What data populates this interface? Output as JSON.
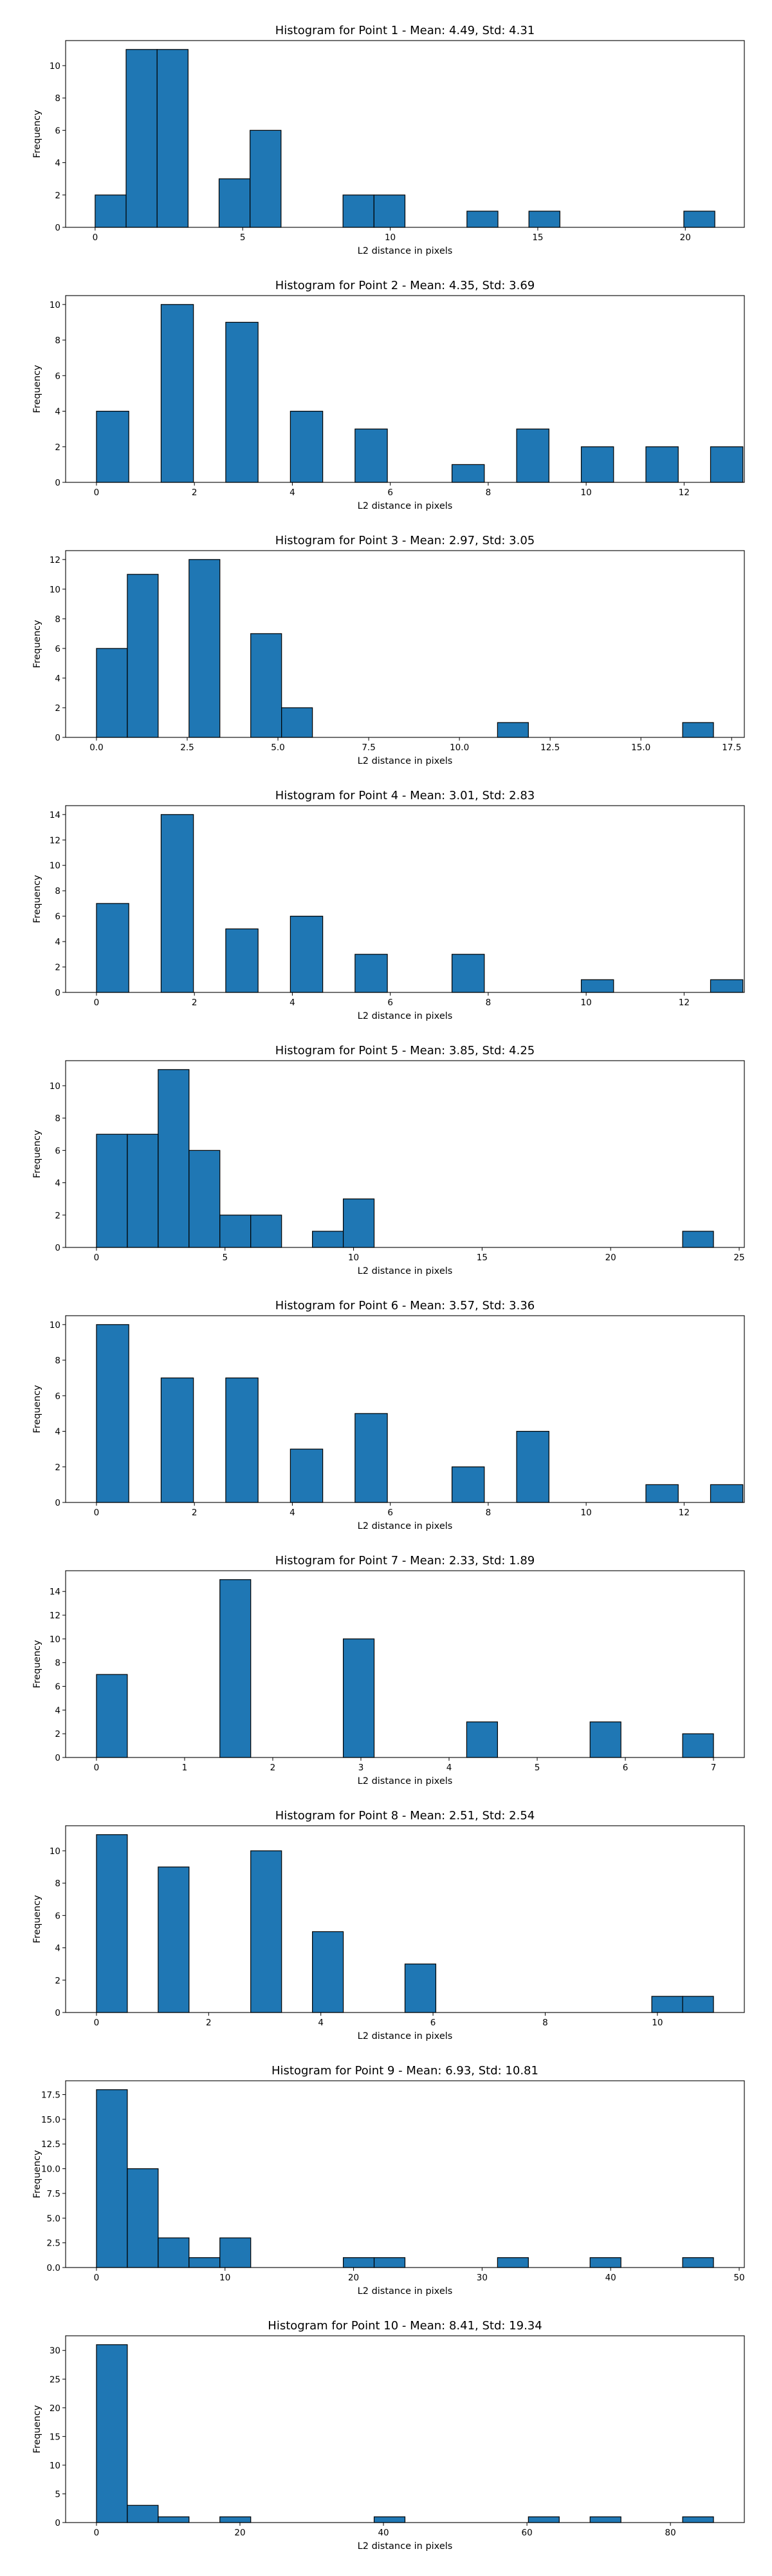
{
  "chart_data": [
    {
      "type": "bar",
      "title": "Histogram for Point 1 - Mean: 4.49, Std: 4.31",
      "xlabel": "L2 distance in pixels",
      "ylabel": "Frequency",
      "xlim": [
        -1.0,
        22.0
      ],
      "ylim": [
        0,
        11.55
      ],
      "xticks": [
        {
          "v": 0,
          "t": "0"
        },
        {
          "v": 5,
          "t": "5"
        },
        {
          "v": 10,
          "t": "10"
        },
        {
          "v": 15,
          "t": "15"
        },
        {
          "v": 20,
          "t": "20"
        }
      ],
      "yticks": [
        {
          "v": 0,
          "t": "0"
        },
        {
          "v": 2,
          "t": "2"
        },
        {
          "v": 4,
          "t": "4"
        },
        {
          "v": 6,
          "t": "6"
        },
        {
          "v": 8,
          "t": "8"
        },
        {
          "v": 10,
          "t": "10"
        }
      ],
      "bins": [
        [
          0.0,
          1.05,
          2
        ],
        [
          1.05,
          2.1,
          11
        ],
        [
          2.1,
          3.15,
          11
        ],
        [
          4.2,
          5.25,
          3
        ],
        [
          5.25,
          6.3,
          6
        ],
        [
          8.4,
          9.45,
          2
        ],
        [
          9.45,
          10.5,
          2
        ],
        [
          12.6,
          13.65,
          1
        ],
        [
          14.7,
          15.75,
          1
        ],
        [
          19.95,
          21.0,
          1
        ]
      ],
      "grid": false
    },
    {
      "type": "bar",
      "title": "Histogram for Point 2 - Mean: 4.35, Std: 3.69",
      "xlabel": "L2 distance in pixels",
      "ylabel": "Frequency",
      "xlim": [
        -0.63,
        13.23
      ],
      "ylim": [
        0,
        10.5
      ],
      "xticks": [
        {
          "v": 0,
          "t": "0"
        },
        {
          "v": 2,
          "t": "2"
        },
        {
          "v": 4,
          "t": "4"
        },
        {
          "v": 6,
          "t": "6"
        },
        {
          "v": 8,
          "t": "8"
        },
        {
          "v": 10,
          "t": "10"
        },
        {
          "v": 12,
          "t": "12"
        }
      ],
      "yticks": [
        {
          "v": 0,
          "t": "0"
        },
        {
          "v": 2,
          "t": "2"
        },
        {
          "v": 4,
          "t": "4"
        },
        {
          "v": 6,
          "t": "6"
        },
        {
          "v": 8,
          "t": "8"
        },
        {
          "v": 10,
          "t": "10"
        }
      ],
      "bins": [
        [
          0.0,
          0.66,
          4
        ],
        [
          1.32,
          1.98,
          10
        ],
        [
          2.64,
          3.3,
          9
        ],
        [
          3.96,
          4.62,
          4
        ],
        [
          5.28,
          5.94,
          3
        ],
        [
          7.26,
          7.92,
          1
        ],
        [
          8.58,
          9.24,
          3
        ],
        [
          9.9,
          10.56,
          2
        ],
        [
          11.22,
          11.88,
          2
        ],
        [
          12.54,
          13.2,
          2
        ]
      ],
      "grid": false
    },
    {
      "type": "bar",
      "title": "Histogram for Point 3 - Mean: 2.97, Std: 3.05",
      "xlabel": "L2 distance in pixels",
      "ylabel": "Frequency",
      "xlim": [
        -0.85,
        17.85
      ],
      "ylim": [
        0,
        12.6
      ],
      "xticks": [
        {
          "v": 0,
          "t": "0.0"
        },
        {
          "v": 2.5,
          "t": "2.5"
        },
        {
          "v": 5,
          "t": "5.0"
        },
        {
          "v": 7.5,
          "t": "7.5"
        },
        {
          "v": 10,
          "t": "10.0"
        },
        {
          "v": 12.5,
          "t": "12.5"
        },
        {
          "v": 15,
          "t": "15.0"
        },
        {
          "v": 17.5,
          "t": "17.5"
        }
      ],
      "yticks": [
        {
          "v": 0,
          "t": "0"
        },
        {
          "v": 2,
          "t": "2"
        },
        {
          "v": 4,
          "t": "4"
        },
        {
          "v": 6,
          "t": "6"
        },
        {
          "v": 8,
          "t": "8"
        },
        {
          "v": 10,
          "t": "10"
        },
        {
          "v": 12,
          "t": "12"
        }
      ],
      "bins": [
        [
          0.0,
          0.85,
          6
        ],
        [
          0.85,
          1.7,
          11
        ],
        [
          2.55,
          3.4,
          12
        ],
        [
          4.25,
          5.1,
          7
        ],
        [
          5.1,
          5.95,
          2
        ],
        [
          11.05,
          11.9,
          1
        ],
        [
          16.15,
          17.0,
          1
        ]
      ],
      "grid": false
    },
    {
      "type": "bar",
      "title": "Histogram for Point 4 - Mean: 3.01, Std: 2.83",
      "xlabel": "L2 distance in pixels",
      "ylabel": "Frequency",
      "xlim": [
        -0.63,
        13.23
      ],
      "ylim": [
        0,
        14.7
      ],
      "xticks": [
        {
          "v": 0,
          "t": "0"
        },
        {
          "v": 2,
          "t": "2"
        },
        {
          "v": 4,
          "t": "4"
        },
        {
          "v": 6,
          "t": "6"
        },
        {
          "v": 8,
          "t": "8"
        },
        {
          "v": 10,
          "t": "10"
        },
        {
          "v": 12,
          "t": "12"
        }
      ],
      "yticks": [
        {
          "v": 0,
          "t": "0"
        },
        {
          "v": 2,
          "t": "2"
        },
        {
          "v": 4,
          "t": "4"
        },
        {
          "v": 6,
          "t": "6"
        },
        {
          "v": 8,
          "t": "8"
        },
        {
          "v": 10,
          "t": "10"
        },
        {
          "v": 12,
          "t": "12"
        },
        {
          "v": 14,
          "t": "14"
        }
      ],
      "bins": [
        [
          0.0,
          0.66,
          7
        ],
        [
          1.32,
          1.98,
          14
        ],
        [
          2.64,
          3.3,
          5
        ],
        [
          3.96,
          4.62,
          6
        ],
        [
          5.28,
          5.94,
          3
        ],
        [
          7.26,
          7.92,
          3
        ],
        [
          9.9,
          10.56,
          1
        ],
        [
          12.54,
          13.2,
          1
        ]
      ],
      "grid": false
    },
    {
      "type": "bar",
      "title": "Histogram for Point 5 - Mean: 3.85, Std: 4.25",
      "xlabel": "L2 distance in pixels",
      "ylabel": "Frequency",
      "xlim": [
        -1.2,
        25.2
      ],
      "ylim": [
        0,
        11.55
      ],
      "xticks": [
        {
          "v": 0,
          "t": "0"
        },
        {
          "v": 5,
          "t": "5"
        },
        {
          "v": 10,
          "t": "10"
        },
        {
          "v": 15,
          "t": "15"
        },
        {
          "v": 20,
          "t": "20"
        },
        {
          "v": 25,
          "t": "25"
        }
      ],
      "yticks": [
        {
          "v": 0,
          "t": "0"
        },
        {
          "v": 2,
          "t": "2"
        },
        {
          "v": 4,
          "t": "4"
        },
        {
          "v": 6,
          "t": "6"
        },
        {
          "v": 8,
          "t": "8"
        },
        {
          "v": 10,
          "t": "10"
        }
      ],
      "bins": [
        [
          0.0,
          1.2,
          7
        ],
        [
          1.2,
          2.4,
          7
        ],
        [
          2.4,
          3.6,
          11
        ],
        [
          3.6,
          4.8,
          6
        ],
        [
          4.8,
          6.0,
          2
        ],
        [
          6.0,
          7.2,
          2
        ],
        [
          8.4,
          9.6,
          1
        ],
        [
          9.6,
          10.8,
          3
        ],
        [
          22.8,
          24.0,
          1
        ]
      ],
      "grid": false
    },
    {
      "type": "bar",
      "title": "Histogram for Point 6 - Mean: 3.57, Std: 3.36",
      "xlabel": "L2 distance in pixels",
      "ylabel": "Frequency",
      "xlim": [
        -0.63,
        13.23
      ],
      "ylim": [
        0,
        10.5
      ],
      "xticks": [
        {
          "v": 0,
          "t": "0"
        },
        {
          "v": 2,
          "t": "2"
        },
        {
          "v": 4,
          "t": "4"
        },
        {
          "v": 6,
          "t": "6"
        },
        {
          "v": 8,
          "t": "8"
        },
        {
          "v": 10,
          "t": "10"
        },
        {
          "v": 12,
          "t": "12"
        }
      ],
      "yticks": [
        {
          "v": 0,
          "t": "0"
        },
        {
          "v": 2,
          "t": "2"
        },
        {
          "v": 4,
          "t": "4"
        },
        {
          "v": 6,
          "t": "6"
        },
        {
          "v": 8,
          "t": "8"
        },
        {
          "v": 10,
          "t": "10"
        }
      ],
      "bins": [
        [
          0.0,
          0.66,
          10
        ],
        [
          1.32,
          1.98,
          7
        ],
        [
          2.64,
          3.3,
          7
        ],
        [
          3.96,
          4.62,
          3
        ],
        [
          5.28,
          5.94,
          5
        ],
        [
          7.26,
          7.92,
          2
        ],
        [
          8.58,
          9.24,
          4
        ],
        [
          11.22,
          11.88,
          1
        ],
        [
          12.54,
          13.2,
          1
        ]
      ],
      "grid": false
    },
    {
      "type": "bar",
      "title": "Histogram for Point 7 - Mean: 2.33, Std: 1.89",
      "xlabel": "L2 distance in pixels",
      "ylabel": "Frequency",
      "xlim": [
        -0.35,
        7.35
      ],
      "ylim": [
        0,
        15.75
      ],
      "xticks": [
        {
          "v": 0,
          "t": "0"
        },
        {
          "v": 1,
          "t": "1"
        },
        {
          "v": 2,
          "t": "2"
        },
        {
          "v": 3,
          "t": "3"
        },
        {
          "v": 4,
          "t": "4"
        },
        {
          "v": 5,
          "t": "5"
        },
        {
          "v": 6,
          "t": "6"
        },
        {
          "v": 7,
          "t": "7"
        }
      ],
      "yticks": [
        {
          "v": 0,
          "t": "0"
        },
        {
          "v": 2,
          "t": "2"
        },
        {
          "v": 4,
          "t": "4"
        },
        {
          "v": 6,
          "t": "6"
        },
        {
          "v": 8,
          "t": "8"
        },
        {
          "v": 10,
          "t": "10"
        },
        {
          "v": 12,
          "t": "12"
        },
        {
          "v": 14,
          "t": "14"
        }
      ],
      "bins": [
        [
          0.0,
          0.35,
          7
        ],
        [
          1.4,
          1.75,
          15
        ],
        [
          2.8,
          3.15,
          10
        ],
        [
          4.2,
          4.55,
          3
        ],
        [
          5.6,
          5.95,
          3
        ],
        [
          6.65,
          7.0,
          2
        ]
      ],
      "grid": false
    },
    {
      "type": "bar",
      "title": "Histogram for Point 8 - Mean: 2.51, Std: 2.54",
      "xlabel": "L2 distance in pixels",
      "ylabel": "Frequency",
      "xlim": [
        -0.55,
        11.55
      ],
      "ylim": [
        0,
        11.55
      ],
      "xticks": [
        {
          "v": 0,
          "t": "0"
        },
        {
          "v": 2,
          "t": "2"
        },
        {
          "v": 4,
          "t": "4"
        },
        {
          "v": 6,
          "t": "6"
        },
        {
          "v": 8,
          "t": "8"
        },
        {
          "v": 10,
          "t": "10"
        }
      ],
      "yticks": [
        {
          "v": 0,
          "t": "0"
        },
        {
          "v": 2,
          "t": "2"
        },
        {
          "v": 4,
          "t": "4"
        },
        {
          "v": 6,
          "t": "6"
        },
        {
          "v": 8,
          "t": "8"
        },
        {
          "v": 10,
          "t": "10"
        }
      ],
      "bins": [
        [
          0.0,
          0.55,
          11
        ],
        [
          1.1,
          1.65,
          9
        ],
        [
          2.75,
          3.3,
          10
        ],
        [
          3.85,
          4.4,
          5
        ],
        [
          5.5,
          6.05,
          3
        ],
        [
          9.9,
          10.45,
          1
        ],
        [
          10.45,
          11.0,
          1
        ]
      ],
      "grid": false
    },
    {
      "type": "bar",
      "title": "Histogram for Point 9 - Mean: 6.93, Std: 10.81",
      "xlabel": "L2 distance in pixels",
      "ylabel": "Frequency",
      "xlim": [
        -2.4,
        50.4
      ],
      "ylim": [
        0,
        18.9
      ],
      "xticks": [
        {
          "v": 0,
          "t": "0"
        },
        {
          "v": 10,
          "t": "10"
        },
        {
          "v": 20,
          "t": "20"
        },
        {
          "v": 30,
          "t": "30"
        },
        {
          "v": 40,
          "t": "40"
        },
        {
          "v": 50,
          "t": "50"
        }
      ],
      "yticks": [
        {
          "v": 0,
          "t": "0.0"
        },
        {
          "v": 2.5,
          "t": "2.5"
        },
        {
          "v": 5,
          "t": "5.0"
        },
        {
          "v": 7.5,
          "t": "7.5"
        },
        {
          "v": 10,
          "t": "10.0"
        },
        {
          "v": 12.5,
          "t": "12.5"
        },
        {
          "v": 15,
          "t": "15.0"
        },
        {
          "v": 17.5,
          "t": "17.5"
        }
      ],
      "bins": [
        [
          0.0,
          2.4,
          18
        ],
        [
          2.4,
          4.8,
          10
        ],
        [
          4.8,
          7.2,
          3
        ],
        [
          7.2,
          9.6,
          1
        ],
        [
          9.6,
          12.0,
          3
        ],
        [
          19.2,
          21.6,
          1
        ],
        [
          21.6,
          24.0,
          1
        ],
        [
          31.2,
          33.6,
          1
        ],
        [
          38.4,
          40.8,
          1
        ],
        [
          45.6,
          48.0,
          1
        ]
      ],
      "grid": false
    },
    {
      "type": "bar",
      "title": "Histogram for Point 10 - Mean: 8.41, Std: 19.34",
      "xlabel": "L2 distance in pixels",
      "ylabel": "Frequency",
      "xlim": [
        -4.3,
        90.3
      ],
      "ylim": [
        0,
        32.55
      ],
      "xticks": [
        {
          "v": 0,
          "t": "0"
        },
        {
          "v": 20,
          "t": "20"
        },
        {
          "v": 40,
          "t": "40"
        },
        {
          "v": 60,
          "t": "60"
        },
        {
          "v": 80,
          "t": "80"
        }
      ],
      "yticks": [
        {
          "v": 0,
          "t": "0"
        },
        {
          "v": 5,
          "t": "5"
        },
        {
          "v": 10,
          "t": "10"
        },
        {
          "v": 15,
          "t": "15"
        },
        {
          "v": 20,
          "t": "20"
        },
        {
          "v": 25,
          "t": "25"
        },
        {
          "v": 30,
          "t": "30"
        }
      ],
      "bins": [
        [
          0.0,
          4.3,
          31
        ],
        [
          4.3,
          8.6,
          3
        ],
        [
          8.6,
          12.9,
          1
        ],
        [
          17.2,
          21.5,
          1
        ],
        [
          38.7,
          43.0,
          1
        ],
        [
          60.2,
          64.5,
          1
        ],
        [
          68.8,
          73.1,
          1
        ],
        [
          81.7,
          86.0,
          1
        ]
      ],
      "grid": false
    }
  ]
}
